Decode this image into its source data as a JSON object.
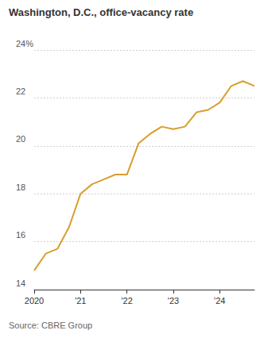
{
  "chart_data": {
    "type": "line",
    "title": "Washington, D.C., office-vacancy rate",
    "source": "Source: CBRE Group",
    "categories": [
      "2020",
      null,
      null,
      null,
      "'21",
      null,
      null,
      null,
      "'22",
      null,
      null,
      null,
      "'23",
      null,
      null,
      null,
      "'24",
      null,
      null,
      null
    ],
    "values": [
      14.8,
      15.5,
      15.7,
      16.6,
      18.0,
      18.4,
      18.6,
      18.8,
      18.8,
      20.1,
      20.5,
      20.8,
      20.7,
      20.8,
      21.4,
      21.5,
      21.8,
      22.5,
      22.7,
      22.5
    ],
    "color": "#d89e2c",
    "ylim": [
      14,
      24
    ],
    "yticks": [
      14,
      16,
      18,
      20,
      22,
      {
        "value": 24,
        "label": "24%"
      }
    ],
    "grid": true
  }
}
